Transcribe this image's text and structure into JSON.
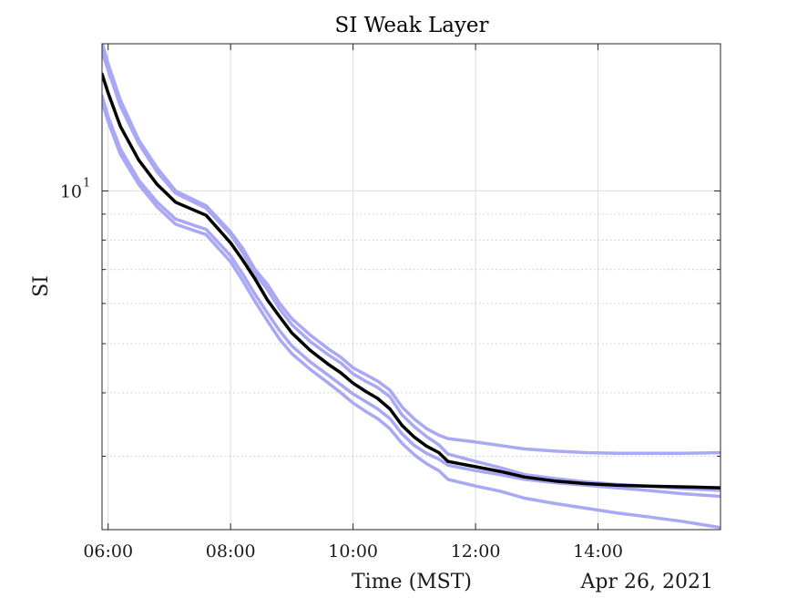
{
  "chart_data": {
    "type": "line",
    "title": "SI Weak Layer",
    "xlabel": "Time (MST)",
    "ylabel": "SI",
    "date_label": "Apr 26, 2021",
    "x_tick_labels": [
      "06:00",
      "08:00",
      "10:00",
      "12:00",
      "14:00"
    ],
    "x_tick_hours": [
      6,
      8,
      10,
      12,
      14
    ],
    "xlim_hours": [
      5.9,
      16.0
    ],
    "y_scale": "log",
    "ylim": [
      2.15,
      19.5
    ],
    "y_tick_label": {
      "base": "10",
      "exp": "1"
    },
    "grid": true,
    "minor_grid_y": true,
    "legend": "none",
    "x_hours": [
      5.9,
      6.0,
      6.2,
      6.5,
      6.8,
      7.1,
      7.6,
      8.0,
      8.2,
      8.4,
      8.6,
      8.8,
      9.0,
      9.3,
      9.6,
      9.8,
      10.0,
      10.2,
      10.4,
      10.6,
      10.8,
      11.0,
      11.2,
      11.4,
      11.55,
      12.0,
      12.4,
      12.8,
      13.3,
      13.8,
      14.3,
      14.8,
      15.4,
      16.0
    ],
    "series": [
      {
        "color": "#000000",
        "width": 3.5,
        "values": [
          17.0,
          15.6,
          13.4,
          11.5,
          10.3,
          9.5,
          8.95,
          7.9,
          7.3,
          6.7,
          6.1,
          5.65,
          5.25,
          4.85,
          4.55,
          4.38,
          4.18,
          4.03,
          3.9,
          3.72,
          3.45,
          3.27,
          3.14,
          3.05,
          2.93,
          2.86,
          2.8,
          2.73,
          2.68,
          2.65,
          2.63,
          2.62,
          2.61,
          2.6
        ]
      },
      {
        "color": "#a8a8f4",
        "width": 3.5,
        "values": [
          19.6,
          17.8,
          15.1,
          12.6,
          11.1,
          10.0,
          9.35,
          8.3,
          7.7,
          7.0,
          6.55,
          6.0,
          5.6,
          5.2,
          4.88,
          4.7,
          4.48,
          4.35,
          4.22,
          4.05,
          3.75,
          3.55,
          3.4,
          3.3,
          3.25,
          3.2,
          3.15,
          3.1,
          3.07,
          3.05,
          3.04,
          3.04,
          3.04,
          3.05
        ]
      },
      {
        "color": "#a8a8f4",
        "width": 3.5,
        "values": [
          18.8,
          17.3,
          14.7,
          12.4,
          10.9,
          9.9,
          9.25,
          8.2,
          7.55,
          6.85,
          6.4,
          5.85,
          5.45,
          5.05,
          4.75,
          4.58,
          4.36,
          4.22,
          4.1,
          3.93,
          3.62,
          3.43,
          3.28,
          3.16,
          3.03,
          2.93,
          2.85,
          2.76,
          2.71,
          2.67,
          2.64,
          2.62,
          2.59,
          2.57
        ]
      },
      {
        "color": "#a8a8f4",
        "width": 3.5,
        "values": [
          15.4,
          14.0,
          12.1,
          10.5,
          9.5,
          8.8,
          8.4,
          7.45,
          6.85,
          6.25,
          5.75,
          5.3,
          4.95,
          4.6,
          4.33,
          4.15,
          3.98,
          3.85,
          3.72,
          3.56,
          3.32,
          3.15,
          3.04,
          2.96,
          2.88,
          2.81,
          2.76,
          2.7,
          2.66,
          2.63,
          2.6,
          2.57,
          2.53,
          2.5
        ]
      },
      {
        "color": "#a8a8f4",
        "width": 3.5,
        "values": [
          15.0,
          13.7,
          11.8,
          10.3,
          9.3,
          8.6,
          8.2,
          7.25,
          6.65,
          6.05,
          5.55,
          5.1,
          4.78,
          4.45,
          4.18,
          4.0,
          3.82,
          3.68,
          3.56,
          3.4,
          3.18,
          3.02,
          2.9,
          2.81,
          2.7,
          2.62,
          2.56,
          2.48,
          2.42,
          2.37,
          2.32,
          2.28,
          2.23,
          2.17
        ]
      }
    ]
  }
}
